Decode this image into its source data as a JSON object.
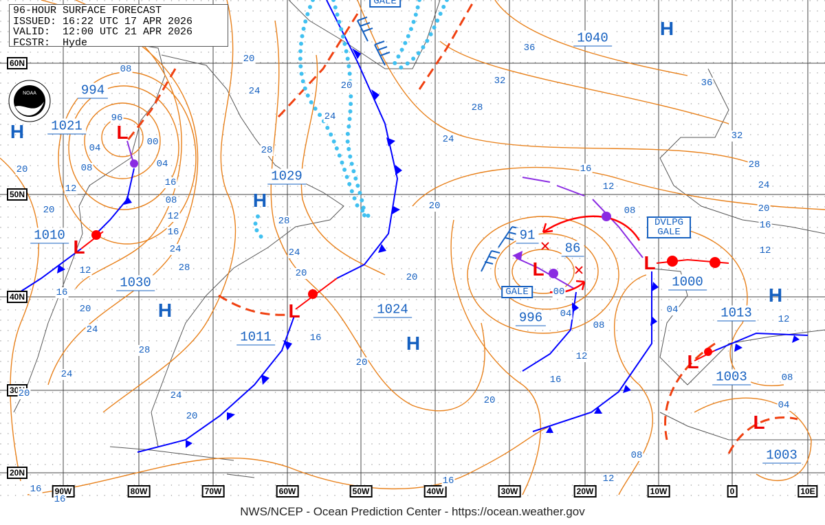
{
  "header": {
    "title": "96-HOUR SURFACE FORECAST",
    "issued": "ISSUED: 16:22 UTC 17 APR 2026",
    "valid": "VALID:  12:00 UTC 21 APR 2026",
    "forecaster": "FCSTR:  Hyde"
  },
  "logo": {
    "text": "NOAA"
  },
  "footer": "NWS/NCEP - Ocean Prediction Center - https://ocean.weather.gov",
  "colors": {
    "isobar": "#e8801a",
    "label": "#1560c0",
    "cold_front": "#0000ff",
    "warm_front": "#ff0000",
    "occluded": "#8a2be2",
    "ice_edge": "#40c0f0"
  },
  "lat_labels": [
    "60N",
    "50N",
    "40N",
    "30N",
    "20N"
  ],
  "lon_labels": [
    "90W",
    "80W",
    "70W",
    "60W",
    "50W",
    "40W",
    "30W",
    "20W",
    "10W",
    "0",
    "10E"
  ],
  "pressure_centers": [
    {
      "type": "H",
      "value": "1021"
    },
    {
      "type": "L",
      "value": "994"
    },
    {
      "type": "L",
      "value": "1010"
    },
    {
      "type": "H",
      "value": "1030"
    },
    {
      "type": "L",
      "value": "1011"
    },
    {
      "type": "H",
      "value": "1029"
    },
    {
      "type": "H",
      "value": "1024"
    },
    {
      "type": "H",
      "value": "1040"
    },
    {
      "type": "L",
      "value": "996"
    },
    {
      "type": "L",
      "value": "1000"
    },
    {
      "type": "H",
      "value": "1013"
    },
    {
      "type": "L",
      "value": "1003"
    },
    {
      "type": "L",
      "value": "1003"
    },
    {
      "type": "L",
      "value": "91"
    },
    {
      "type": "L",
      "value": "86"
    }
  ],
  "warnings": [
    "GALE",
    "DVLPG GALE",
    "GALE"
  ],
  "isobar_labels": [
    "08",
    "96",
    "00",
    "04",
    "04",
    "08",
    "20",
    "12",
    "16",
    "08",
    "12",
    "16",
    "20",
    "24",
    "28",
    "12",
    "16",
    "20",
    "24",
    "28",
    "24",
    "20",
    "24",
    "20",
    "16",
    "16",
    "20",
    "24",
    "28",
    "28",
    "24",
    "20",
    "16",
    "20",
    "24",
    "20",
    "24",
    "28",
    "32",
    "36",
    "20",
    "20",
    "20",
    "16",
    "12",
    "08",
    "00",
    "04",
    "08",
    "12",
    "16",
    "04",
    "12",
    "08",
    "04",
    "08",
    "12",
    "16",
    "36",
    "32",
    "28",
    "24",
    "20",
    "16",
    "12"
  ]
}
